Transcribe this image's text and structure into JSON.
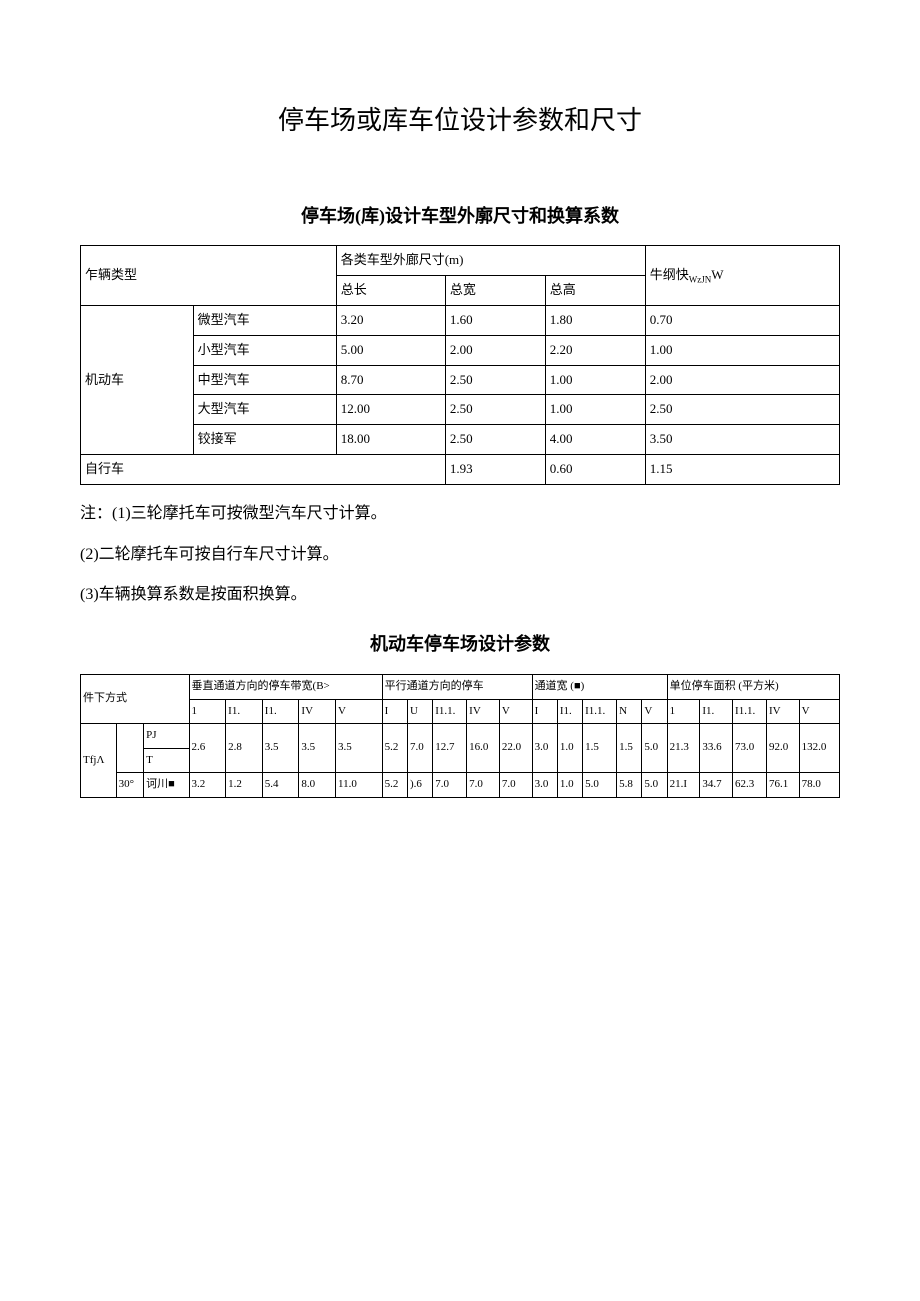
{
  "mainTitle": "停车场或库车位设计参数和尺寸",
  "section1": {
    "title": "停车场(库)设计车型外廓尺寸和换算系数",
    "header": {
      "col1": "乍辆类型",
      "col2": "各类车型外廊尺寸(m)",
      "sub1": "总长",
      "sub2": "总宽",
      "sub3": "总高",
      "col3_prefix": "牛纲快",
      "col3_suffix": "W"
    },
    "rows": [
      {
        "cat": "机动车",
        "type": "微型汽车",
        "l": "3.20",
        "w": "1.60",
        "h": "1.80",
        "c": "0.70"
      },
      {
        "cat": "",
        "type": "小型汽车",
        "l": "5.00",
        "w": "2.00",
        "h": "2.20",
        "c": "1.00"
      },
      {
        "cat": "",
        "type": "中型汽车",
        "l": "8.70",
        "w": "2.50",
        "h": "1.00",
        "c": "2.00"
      },
      {
        "cat": "",
        "type": "大型汽车",
        "l": "12.00",
        "w": "2.50",
        "h": "1.00",
        "c": "2.50"
      },
      {
        "cat": "",
        "type": "铰接军",
        "l": "18.00",
        "w": "2.50",
        "h": "4.00",
        "c": "3.50"
      },
      {
        "cat": "自行车",
        "type": "",
        "l": "",
        "w": "1.93",
        "h": "0.60",
        "c": "1.15"
      }
    ]
  },
  "notes": {
    "n1": "注：(1)三轮摩托车可按微型汽车尺寸计算。",
    "n2": "(2)二轮摩托车可按自行车尺寸计算。",
    "n3": "(3)车辆换算系数是按面积换算。"
  },
  "section2": {
    "title": "机动车停车场设计参数",
    "header": {
      "colA": "件下方式",
      "grp1": "垂直通道方向的停车带宽(B>",
      "grp2": "平行通道方向的停车",
      "grp3": "通道宽 (■)",
      "grp4": "单位停车面积 (平方米)",
      "subs": [
        "1",
        "I1.",
        "I1.",
        "IV",
        "V",
        "I",
        "U",
        "I1.1.",
        "IV",
        "V",
        "I",
        "I1.",
        "I1.1.",
        "N",
        "V",
        "1",
        "I1.",
        "I1.1.",
        "IV",
        "V"
      ]
    },
    "rows": [
      {
        "c1": "TfjΛ",
        "c2": "",
        "c3a": "PJ",
        "c3b": "T",
        "vals": [
          "2.6",
          "2.8",
          "3.5",
          "3.5",
          "3.5",
          "5.2",
          "7.0",
          "12.7",
          "16.0",
          "22.0",
          "3.0",
          "1.0",
          "1.5",
          "1.5",
          "5.0",
          "21.3",
          "33.6",
          "73.0",
          "92.0",
          "132.0"
        ]
      },
      {
        "c1": "",
        "c2": "30°",
        "c3": "诃川■",
        "vals": [
          "3.2",
          "1.2",
          "5.4",
          "8.0",
          "11.0",
          "5.2",
          ").6",
          "7.0",
          "7.0",
          "7.0",
          "3.0",
          "1.0",
          "5.0",
          "5.8",
          "5.0",
          "21.I",
          "34.7",
          "62.3",
          "76.1",
          "78.0"
        ]
      }
    ]
  },
  "colors": {
    "text": "#000000",
    "bg": "#ffffff",
    "border": "#000000"
  }
}
